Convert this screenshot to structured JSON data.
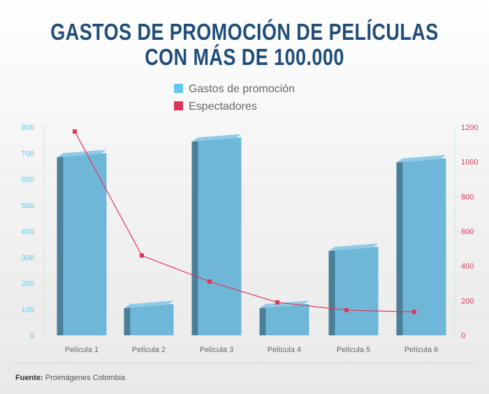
{
  "title": {
    "line1": "GASTOS DE PROMOCIÓN DE PELÍCULAS",
    "line2": "CON MÁS DE 100.000"
  },
  "source": {
    "label": "Fuente:",
    "text": "Proimágenes Colombia"
  },
  "colors": {
    "bar_front": "#6fb7d9",
    "bar_side": "#4a7f99",
    "bar_top": "#8fcbe6",
    "line": "#e0345a",
    "left_axis": "#5fc8ec",
    "right_axis": "#e0345a"
  },
  "chart_data": {
    "type": "bar",
    "title": "GASTOS DE PROMOCIÓN DE PELÍCULAS CON MÁS DE 100.000",
    "categories": [
      "Película 1",
      "Película 2",
      "Película 3",
      "Película 4",
      "Película 5",
      "Película 6"
    ],
    "series": [
      {
        "name": "Gastos de promoción",
        "type": "bar",
        "axis": "left",
        "values": [
          700,
          120,
          760,
          120,
          340,
          680
        ]
      },
      {
        "name": "Espectadores",
        "type": "line",
        "axis": "right",
        "values": [
          1175,
          460,
          310,
          190,
          145,
          135
        ]
      }
    ],
    "y_left": {
      "ylim": [
        0,
        800
      ],
      "ticks": [
        "0",
        "100",
        "200",
        "300",
        "400",
        "500",
        "600",
        "700",
        "800"
      ]
    },
    "y_right": {
      "ylim": [
        0,
        1200
      ],
      "ticks": [
        "0",
        "200",
        "400",
        "600",
        "800",
        "1000",
        "1200"
      ]
    },
    "legend": "top-center",
    "grid": false
  }
}
